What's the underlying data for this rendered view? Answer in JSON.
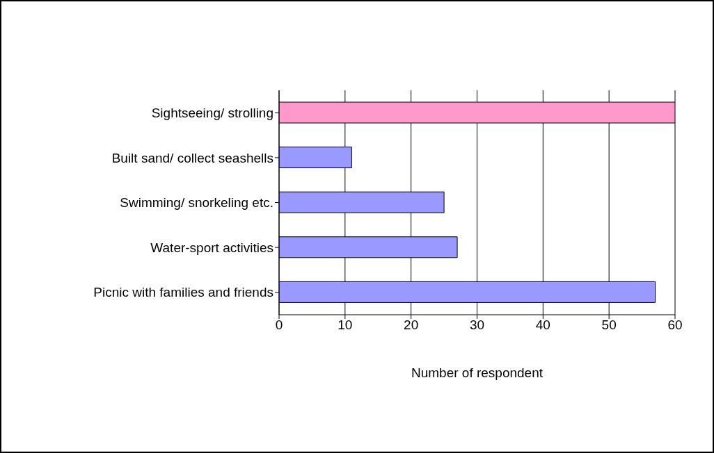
{
  "chart_data": {
    "type": "bar",
    "orientation": "horizontal",
    "categories": [
      "Sightseeing/ strolling",
      "Built sand/ collect seashells",
      "Swimming/ snorkeling etc.",
      "Water-sport activities",
      "Picnic with families and friends"
    ],
    "values": [
      60,
      11,
      25,
      27,
      57
    ],
    "colors": [
      "#ff99cc",
      "#9999ff",
      "#9999ff",
      "#9999ff",
      "#9999ff"
    ],
    "xlabel": "Number of respondent",
    "xlim": [
      0,
      60
    ],
    "xticks": [
      0,
      10,
      20,
      30,
      40,
      50,
      60
    ],
    "grid": "x"
  }
}
